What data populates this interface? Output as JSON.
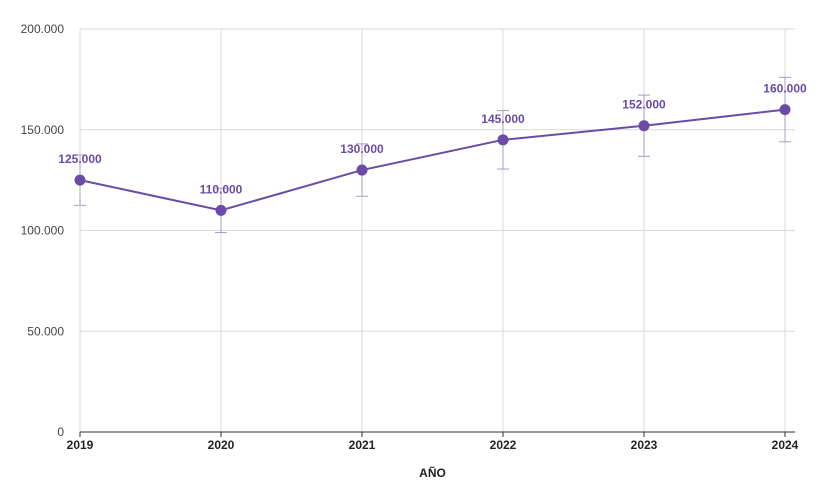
{
  "chart_data": {
    "type": "line",
    "title": "",
    "xlabel": "AÑO",
    "ylabel": "",
    "categories": [
      "2019",
      "2020",
      "2021",
      "2022",
      "2023",
      "2024"
    ],
    "series": [
      {
        "values": [
          125000,
          110000,
          130000,
          145000,
          152000,
          160000
        ],
        "error_low": [
          112500,
          99000,
          117000,
          130500,
          136800,
          144000
        ],
        "error_high": [
          137500,
          121000,
          143000,
          159500,
          167200,
          176000
        ],
        "data_labels": [
          "125.000",
          "110.000",
          "130.000",
          "145.000",
          "152.000",
          "160.000"
        ]
      }
    ],
    "ylim": [
      0,
      200000
    ],
    "yticks": [
      {
        "value": 0,
        "label": "0"
      },
      {
        "value": 50000,
        "label": "50.000"
      },
      {
        "value": 100000,
        "label": "100.000"
      },
      {
        "value": 150000,
        "label": "150.000"
      },
      {
        "value": 200000,
        "label": "200.000"
      }
    ],
    "grid": true,
    "legend": "none",
    "colors": {
      "series": "#6a4ba6",
      "error_bar": "#a99cc9",
      "grid": "#d9d9d9",
      "axis": "#333333"
    }
  }
}
